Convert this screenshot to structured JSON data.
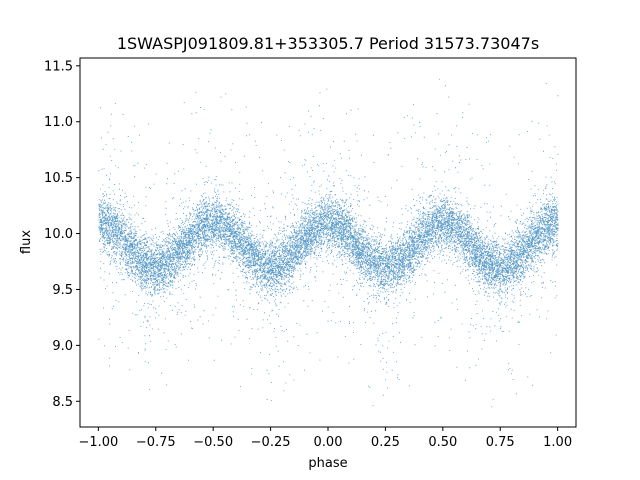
{
  "chart_data": {
    "type": "scatter",
    "title": "1SWASPJ091809.81+353305.7 Period 31573.73047s",
    "xlabel": "phase",
    "ylabel": "flux",
    "xlim": [
      -1.08,
      1.08
    ],
    "ylim": [
      8.27,
      11.57
    ],
    "xticks": [
      -1.0,
      -0.75,
      -0.5,
      -0.25,
      0.0,
      0.25,
      0.5,
      0.75,
      1.0
    ],
    "xtick_labels": [
      "−1.00",
      "−0.75",
      "−0.50",
      "−0.25",
      "0.00",
      "0.25",
      "0.50",
      "0.75",
      "1.00"
    ],
    "yticks": [
      8.5,
      9.0,
      9.5,
      10.0,
      10.5,
      11.0,
      11.5
    ],
    "ytick_labels": [
      "8.5",
      "9.0",
      "9.5",
      "10.0",
      "10.5",
      "11.0",
      "11.5"
    ],
    "grid": false,
    "point_color": "#1f77b4",
    "model": {
      "mean_flux": 9.9,
      "amplitude": 0.2,
      "cycles_per_unit_phase": 2,
      "peak_phase": 0.0,
      "scatter_sigma": 0.12,
      "point_count": 16000
    }
  }
}
